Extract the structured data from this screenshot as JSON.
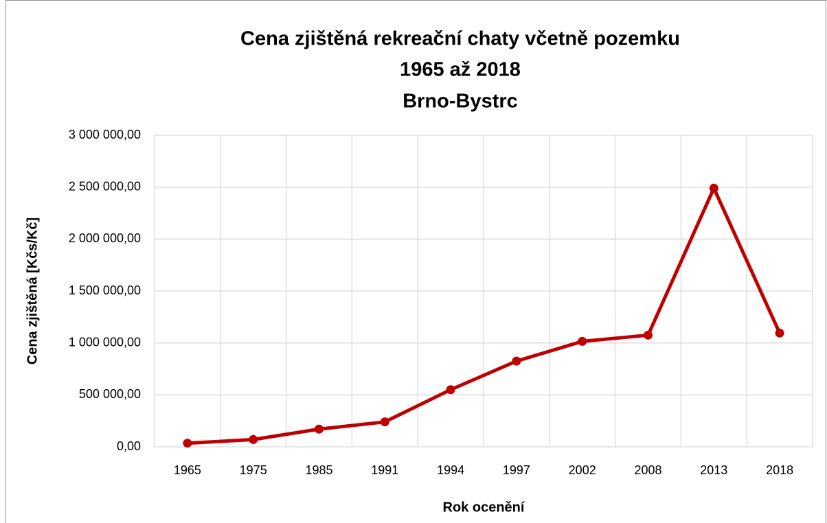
{
  "chart_data": {
    "type": "line",
    "title": [
      "Cena zjištěná rekreační chaty včetně pozemku",
      "1965 až 2018",
      "Brno-Bystrc"
    ],
    "xlabel": "Rok ocenění",
    "ylabel": "Cena zjištěná [Kčs/Kč]",
    "categories": [
      "1965",
      "1975",
      "1985",
      "1991",
      "1994",
      "1997",
      "2002",
      "2008",
      "2013",
      "2018"
    ],
    "series": [
      {
        "name": "Cena zjištěná",
        "color": "#c00000",
        "values": [
          35000,
          70000,
          170000,
          240000,
          550000,
          825000,
          1015000,
          1075000,
          2490000,
          1095000
        ]
      }
    ],
    "ylim": [
      0,
      3000000
    ],
    "yticks": [
      {
        "value": 0,
        "label": "0,00"
      },
      {
        "value": 500000,
        "label": "500 000,00"
      },
      {
        "value": 1000000,
        "label": "1 000 000,00"
      },
      {
        "value": 1500000,
        "label": "1 500 000,00"
      },
      {
        "value": 2000000,
        "label": "2 000 000,00"
      },
      {
        "value": 2500000,
        "label": "2 500 000,00"
      },
      {
        "value": 3000000,
        "label": "3 000 000,00"
      }
    ],
    "grid": true
  }
}
